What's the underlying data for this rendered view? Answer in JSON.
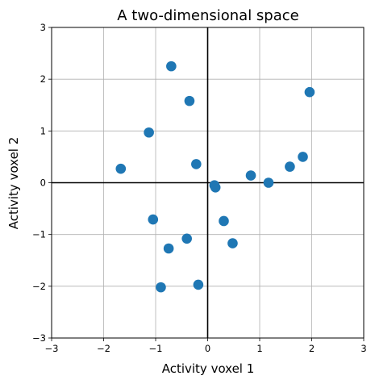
{
  "chart_data": {
    "type": "scatter",
    "title": "A two-dimensional space",
    "xlabel": "Activity voxel 1",
    "ylabel": "Activity voxel 2",
    "xlim": [
      -3,
      3
    ],
    "ylim": [
      -3,
      3
    ],
    "xticks": [
      "−3",
      "−2",
      "−1",
      "0",
      "1",
      "2",
      "3"
    ],
    "yticks": [
      "−3",
      "−2",
      "−1",
      "0",
      "1",
      "2",
      "3"
    ],
    "grid": true,
    "zero_lines": true,
    "point_color": "#1f77b4",
    "points": [
      {
        "x": -0.7,
        "y": 2.25
      },
      {
        "x": -0.35,
        "y": 1.58
      },
      {
        "x": -1.13,
        "y": 0.97
      },
      {
        "x": -1.67,
        "y": 0.27
      },
      {
        "x": -0.22,
        "y": 0.36
      },
      {
        "x": 0.13,
        "y": -0.05
      },
      {
        "x": 0.15,
        "y": -0.09
      },
      {
        "x": 0.83,
        "y": 0.14
      },
      {
        "x": 1.17,
        "y": 0.0
      },
      {
        "x": 1.58,
        "y": 0.31
      },
      {
        "x": 1.83,
        "y": 0.5
      },
      {
        "x": 1.96,
        "y": 1.75
      },
      {
        "x": -1.05,
        "y": -0.71
      },
      {
        "x": -0.4,
        "y": -1.08
      },
      {
        "x": -0.75,
        "y": -1.27
      },
      {
        "x": 0.31,
        "y": -0.74
      },
      {
        "x": 0.48,
        "y": -1.17
      },
      {
        "x": -0.9,
        "y": -2.02
      },
      {
        "x": -0.18,
        "y": -1.97
      }
    ]
  }
}
